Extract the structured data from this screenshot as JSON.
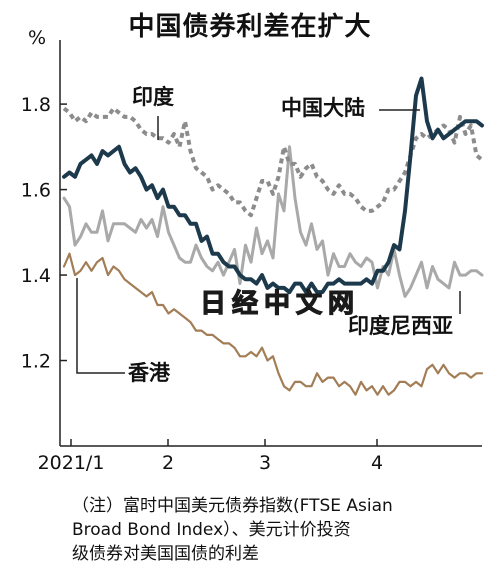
{
  "chart_data": {
    "type": "line",
    "title": "中国债券利差在扩大",
    "ylabel": "%",
    "ylim": [
      1.0,
      1.95
    ],
    "yticks": [
      "1.2",
      "1.4",
      "1.6",
      "1.8"
    ],
    "xticks": [
      "2021/1",
      "2",
      "3",
      "4"
    ],
    "series": [
      {
        "name": "中国大陆",
        "color": "#1d3a4c",
        "style": "solid",
        "values": [
          1.63,
          1.64,
          1.63,
          1.66,
          1.67,
          1.68,
          1.66,
          1.69,
          1.68,
          1.69,
          1.7,
          1.66,
          1.64,
          1.65,
          1.63,
          1.6,
          1.61,
          1.58,
          1.6,
          1.56,
          1.56,
          1.54,
          1.54,
          1.52,
          1.52,
          1.48,
          1.49,
          1.45,
          1.45,
          1.43,
          1.42,
          1.42,
          1.4,
          1.39,
          1.39,
          1.38,
          1.4,
          1.37,
          1.38,
          1.37,
          1.37,
          1.36,
          1.38,
          1.38,
          1.36,
          1.38,
          1.36,
          1.36,
          1.38,
          1.38,
          1.39,
          1.38,
          1.38,
          1.38,
          1.38,
          1.39,
          1.38,
          1.41,
          1.41,
          1.43,
          1.47,
          1.46,
          1.55,
          1.68,
          1.82,
          1.86,
          1.76,
          1.72,
          1.74,
          1.72,
          1.73,
          1.74,
          1.75,
          1.76,
          1.76,
          1.76,
          1.75
        ]
      },
      {
        "name": "印度",
        "color": "#8c8c8c",
        "style": "dashed",
        "values": [
          1.79,
          1.78,
          1.76,
          1.77,
          1.76,
          1.78,
          1.77,
          1.77,
          1.77,
          1.79,
          1.78,
          1.77,
          1.77,
          1.76,
          1.74,
          1.73,
          1.73,
          1.72,
          1.72,
          1.71,
          1.73,
          1.7,
          1.76,
          1.69,
          1.65,
          1.64,
          1.63,
          1.6,
          1.61,
          1.6,
          1.59,
          1.57,
          1.57,
          1.55,
          1.54,
          1.58,
          1.62,
          1.62,
          1.59,
          1.63,
          1.7,
          1.66,
          1.66,
          1.63,
          1.65,
          1.66,
          1.63,
          1.62,
          1.6,
          1.59,
          1.61,
          1.59,
          1.59,
          1.58,
          1.56,
          1.55,
          1.55,
          1.56,
          1.57,
          1.6,
          1.6,
          1.62,
          1.64,
          1.68,
          1.72,
          1.73,
          1.72,
          1.73,
          1.74,
          1.75,
          1.74,
          1.71,
          1.77,
          1.73,
          1.75,
          1.68,
          1.67
        ]
      },
      {
        "name": "印度尼西亚",
        "color": "#a9a9a9",
        "style": "solid",
        "values": [
          1.58,
          1.56,
          1.47,
          1.49,
          1.52,
          1.5,
          1.5,
          1.55,
          1.48,
          1.52,
          1.52,
          1.52,
          1.51,
          1.5,
          1.53,
          1.51,
          1.53,
          1.49,
          1.56,
          1.5,
          1.47,
          1.44,
          1.43,
          1.43,
          1.47,
          1.44,
          1.42,
          1.41,
          1.43,
          1.4,
          1.43,
          1.46,
          1.38,
          1.47,
          1.43,
          1.51,
          1.45,
          1.48,
          1.44,
          1.59,
          1.55,
          1.7,
          1.58,
          1.5,
          1.47,
          1.52,
          1.46,
          1.48,
          1.4,
          1.45,
          1.42,
          1.42,
          1.45,
          1.43,
          1.42,
          1.44,
          1.43,
          1.37,
          1.42,
          1.4,
          1.46,
          1.4,
          1.35,
          1.37,
          1.4,
          1.43,
          1.37,
          1.42,
          1.39,
          1.38,
          1.37,
          1.43,
          1.4,
          1.4,
          1.41,
          1.41,
          1.4
        ]
      },
      {
        "name": "香港",
        "color": "#a27d55",
        "style": "solid",
        "values": [
          1.42,
          1.45,
          1.4,
          1.41,
          1.43,
          1.41,
          1.43,
          1.44,
          1.4,
          1.42,
          1.41,
          1.39,
          1.38,
          1.37,
          1.36,
          1.35,
          1.36,
          1.33,
          1.33,
          1.31,
          1.32,
          1.31,
          1.3,
          1.29,
          1.27,
          1.27,
          1.26,
          1.26,
          1.25,
          1.24,
          1.24,
          1.23,
          1.21,
          1.21,
          1.22,
          1.21,
          1.23,
          1.2,
          1.21,
          1.17,
          1.14,
          1.13,
          1.15,
          1.15,
          1.14,
          1.14,
          1.17,
          1.15,
          1.16,
          1.16,
          1.14,
          1.15,
          1.14,
          1.12,
          1.15,
          1.13,
          1.14,
          1.12,
          1.14,
          1.12,
          1.13,
          1.15,
          1.15,
          1.14,
          1.15,
          1.14,
          1.18,
          1.19,
          1.17,
          1.19,
          1.17,
          1.16,
          1.17,
          1.17,
          1.16,
          1.17,
          1.17
        ]
      }
    ],
    "labels": {
      "india": "印度",
      "china": "中国大陆",
      "indonesia": "印度尼西亚",
      "hongkong": "香港"
    },
    "grid": false,
    "legend": "inline"
  },
  "note": {
    "line1": "（注）富时中国美元债券指数(FTSE Asian",
    "line2": "Broad Bond Index）、美元计价投资",
    "line3": "级债券对美国国债的利差"
  },
  "watermark": "日经中文网"
}
